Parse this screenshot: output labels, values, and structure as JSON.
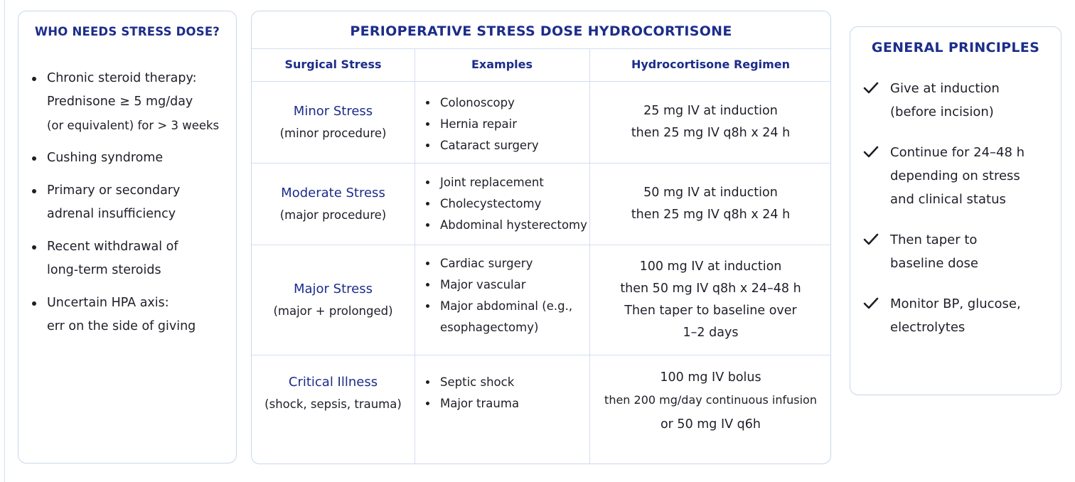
{
  "left_panel": {
    "title": "WHO NEEDS STRESS DOSE?",
    "items": [
      {
        "lines": [
          "Chronic steroid therapy:",
          "Prednisone ≥ 5 mg/day",
          "(or equivalent) for > 3 weeks"
        ]
      },
      {
        "lines": [
          "Cushing syndrome"
        ]
      },
      {
        "lines": [
          "Primary or secondary",
          "adrenal insufficiency"
        ]
      },
      {
        "lines": [
          "Recent withdrawal of",
          "long-term steroids"
        ]
      },
      {
        "lines": [
          "Uncertain HPA axis:",
          "err on the side of giving"
        ]
      }
    ]
  },
  "table": {
    "title": "PERIOPERATIVE STRESS DOSE HYDROCORTISONE",
    "headers": [
      "Surgical Stress",
      "Examples",
      "Hydrocortisone Regimen"
    ],
    "rows": [
      {
        "stress": "Minor Stress",
        "stress_detail": "(minor procedure)",
        "examples": [
          "Colonoscopy",
          "Hernia repair",
          "Cataract surgery"
        ],
        "regimen": [
          "25 mg IV at induction",
          "then 25 mg IV q8h x 24 h"
        ]
      },
      {
        "stress": "Moderate Stress",
        "stress_detail": "(major procedure)",
        "examples": [
          "Joint replacement",
          "Cholecystectomy",
          "Abdominal hysterectomy"
        ],
        "regimen": [
          "50 mg IV at induction",
          "then 25 mg IV q8h x 24 h"
        ]
      },
      {
        "stress": "Major Stress",
        "stress_detail": "(major + prolonged)",
        "examples": [
          "Cardiac surgery",
          "Major vascular",
          "Major abdominal (e.g.,",
          "esophagectomy)"
        ],
        "regimen": [
          "100 mg IV at induction",
          "then 50 mg IV q8h x 24–48 h",
          "Then taper to baseline over",
          "1–2 days"
        ]
      },
      {
        "stress": "Critical Illness",
        "stress_detail": "(shock, sepsis, trauma)",
        "examples": [
          "Septic shock",
          "Major trauma"
        ],
        "regimen": [
          "100 mg IV bolus",
          "then 200 mg/day continuous infusion",
          "or 50 mg IV q6h"
        ]
      }
    ]
  },
  "right_panel": {
    "title": "GENERAL PRINCIPLES",
    "items": [
      {
        "icon": "check-icon",
        "lines": [
          "Give at induction",
          "(before incision)"
        ]
      },
      {
        "icon": "check-icon",
        "lines": [
          "Continue for 24–48 h",
          "depending on stress",
          "and clinical status"
        ]
      },
      {
        "icon": "check-icon",
        "lines": [
          "Then taper to",
          "baseline dose"
        ]
      },
      {
        "icon": "check-icon",
        "lines": [
          "Monitor BP, glucose,",
          "electrolytes"
        ]
      }
    ]
  },
  "colors": {
    "heading": "#1c2d8a",
    "border": "#c9d6ec",
    "text": "#1e1e28"
  }
}
